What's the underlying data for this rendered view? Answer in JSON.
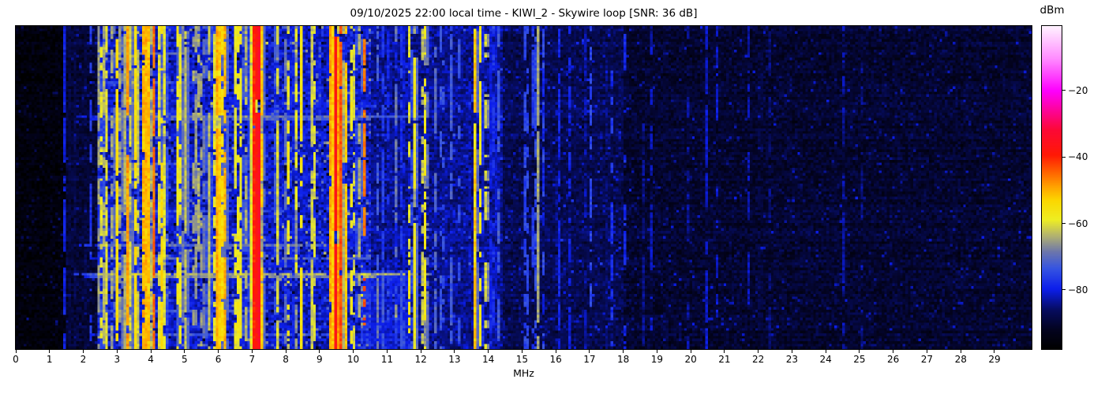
{
  "chart_data": {
    "type": "heatmap",
    "subtype": "radio-spectrum-waterfall",
    "title": "09/10/2025 22:00 local time - KIWI_2 - Skywire loop [SNR: 36 dB]",
    "xlabel": "MHz",
    "x_range_mhz": [
      0,
      30.1
    ],
    "x_ticks": [
      0,
      1,
      2,
      3,
      4,
      5,
      6,
      7,
      8,
      9,
      10,
      11,
      12,
      13,
      14,
      15,
      16,
      17,
      18,
      19,
      20,
      21,
      22,
      23,
      24,
      25,
      26,
      27,
      28,
      29
    ],
    "colorbar": {
      "label": "dBm",
      "range_dbm": [
        -97.8,
        -0.6
      ],
      "ticks": [
        {
          "value": -20,
          "label": "−20"
        },
        {
          "value": -40,
          "label": "−40"
        },
        {
          "value": -60,
          "label": "−60"
        },
        {
          "value": -80,
          "label": "−80"
        }
      ]
    },
    "colormap_stops": [
      [
        0.0,
        0,
        0,
        0
      ],
      [
        0.06,
        3,
        3,
        32
      ],
      [
        0.12,
        6,
        12,
        95
      ],
      [
        0.185,
        12,
        30,
        235
      ],
      [
        0.25,
        55,
        85,
        225
      ],
      [
        0.3,
        108,
        118,
        172
      ],
      [
        0.35,
        178,
        178,
        112
      ],
      [
        0.4,
        238,
        238,
        35
      ],
      [
        0.46,
        252,
        215,
        0
      ],
      [
        0.5,
        255,
        165,
        0
      ],
      [
        0.55,
        255,
        95,
        0
      ],
      [
        0.6,
        255,
        25,
        5
      ],
      [
        0.68,
        252,
        8,
        55
      ],
      [
        0.8,
        253,
        0,
        253
      ],
      [
        0.9,
        255,
        140,
        255
      ],
      [
        1.0,
        255,
        242,
        255
      ]
    ],
    "grid": {
      "cols": 386,
      "rows": 123
    },
    "seed": 7,
    "noise_floor_columns": [
      "f_start_mhz",
      "f_end_mhz",
      "floor_dbm"
    ],
    "noise_floor_dbm": [
      [
        0.0,
        1.5,
        -95.5
      ],
      [
        1.5,
        2.45,
        -90.0
      ],
      [
        2.45,
        10.5,
        -81.0
      ],
      [
        10.5,
        14.4,
        -84.0
      ],
      [
        14.4,
        18.0,
        -87.5
      ],
      [
        18.0,
        30.1,
        -90.5
      ]
    ],
    "signals_columns": [
      "freq_mhz",
      "peak_dbm",
      "width_mhz",
      "duty_cycle"
    ],
    "signals": [
      [
        1.43,
        -77,
        0.035,
        0.75
      ],
      [
        1.57,
        -75,
        0.035,
        0.8
      ],
      [
        1.63,
        -72,
        0.035,
        0.85
      ],
      [
        1.78,
        -76,
        0.035,
        0.7
      ],
      [
        1.94,
        -78,
        0.035,
        0.6
      ],
      [
        2.1,
        -74,
        0.04,
        0.65
      ],
      [
        2.22,
        -77,
        0.035,
        0.6
      ],
      [
        2.6,
        -62,
        0.04,
        0.8
      ],
      [
        3.2,
        -54,
        0.05,
        0.8
      ],
      [
        3.33,
        -47,
        0.06,
        0.85
      ],
      [
        3.52,
        -48,
        0.05,
        0.8
      ],
      [
        3.9,
        -25,
        0.035,
        0.9
      ],
      [
        4.1,
        -45,
        0.05,
        0.8
      ],
      [
        4.28,
        -52,
        0.05,
        0.75
      ],
      [
        6.0,
        -44,
        0.07,
        0.9
      ],
      [
        6.07,
        -53,
        0.05,
        0.75
      ],
      [
        6.18,
        -47,
        0.05,
        0.85
      ],
      [
        7.06,
        -40,
        0.08,
        0.93
      ],
      [
        7.18,
        -32,
        0.09,
        0.97
      ],
      [
        7.31,
        -50,
        0.06,
        0.8
      ],
      [
        8.46,
        -56,
        0.05,
        0.7
      ],
      [
        9.35,
        -45,
        0.07,
        0.9
      ],
      [
        9.48,
        -37,
        0.1,
        0.96
      ],
      [
        9.62,
        -43,
        0.07,
        0.9
      ],
      [
        9.76,
        -48,
        0.06,
        0.85
      ],
      [
        10.0,
        -58,
        0.05,
        0.6
      ],
      [
        10.32,
        -45,
        0.06,
        0.5
      ],
      [
        11.15,
        -61,
        0.035,
        0.85
      ],
      [
        11.65,
        -59,
        0.04,
        0.35
      ],
      [
        11.84,
        -54,
        0.06,
        0.75
      ],
      [
        12.07,
        -58,
        0.05,
        0.55
      ],
      [
        13.62,
        -51,
        0.07,
        0.85
      ],
      [
        13.78,
        -55,
        0.06,
        0.75
      ],
      [
        14.1,
        -72,
        0.04,
        0.65
      ],
      [
        15.08,
        -74,
        0.035,
        0.7
      ],
      [
        15.5,
        -57,
        0.035,
        0.9
      ],
      [
        16.12,
        -74,
        0.035,
        0.6
      ],
      [
        16.9,
        -78,
        0.035,
        0.55
      ],
      [
        17.65,
        -76,
        0.04,
        0.6
      ],
      [
        18.05,
        -79,
        0.035,
        0.55
      ],
      [
        20.48,
        -80,
        0.04,
        0.65
      ],
      [
        20.68,
        -82,
        0.035,
        0.55
      ],
      [
        21.05,
        -80,
        0.035,
        0.6
      ],
      [
        22.35,
        -84,
        0.035,
        0.5
      ],
      [
        24.0,
        -85,
        0.035,
        0.45
      ],
      [
        24.95,
        -83,
        0.035,
        0.5
      ],
      [
        26.5,
        -85,
        0.035,
        0.4
      ],
      [
        28.4,
        -86,
        0.035,
        0.4
      ]
    ],
    "activity_bands_columns": [
      "f_start_mhz",
      "f_end_mhz",
      "station_count",
      "dbm_min",
      "dbm_max",
      "duty_cycle"
    ],
    "activity_bands": [
      [
        2.45,
        3.25,
        9,
        -66,
        -54,
        0.55
      ],
      [
        3.25,
        4.2,
        15,
        -62,
        -48,
        0.65
      ],
      [
        4.2,
        5.2,
        11,
        -64,
        -53,
        0.6
      ],
      [
        5.25,
        5.7,
        5,
        -68,
        -58,
        0.5
      ],
      [
        5.7,
        6.4,
        8,
        -62,
        -52,
        0.65
      ],
      [
        6.45,
        7.0,
        7,
        -65,
        -55,
        0.6
      ],
      [
        7.35,
        8.15,
        7,
        -66,
        -56,
        0.55
      ],
      [
        8.2,
        8.9,
        6,
        -62,
        -54,
        0.6
      ],
      [
        9.9,
        10.18,
        3,
        -63,
        -56,
        0.55
      ],
      [
        10.55,
        11.55,
        8,
        -77,
        -68,
        0.5
      ],
      [
        11.6,
        12.25,
        4,
        -63,
        -56,
        0.55
      ],
      [
        12.3,
        13.45,
        8,
        -77,
        -66,
        0.45
      ],
      [
        13.5,
        13.95,
        3,
        -60,
        -54,
        0.65
      ],
      [
        14.0,
        14.4,
        4,
        -74,
        -66,
        0.55
      ],
      [
        14.45,
        16.0,
        7,
        -80,
        -72,
        0.5
      ],
      [
        16.05,
        18.0,
        7,
        -82,
        -75,
        0.45
      ],
      [
        18.1,
        30.0,
        13,
        -86,
        -80,
        0.45
      ]
    ],
    "time_streaks_columns": [
      "row",
      "f_start_mhz",
      "f_end_mhz",
      "boost_db"
    ],
    "time_streaks": [
      [
        10,
        2.4,
        4.8,
        9
      ],
      [
        21,
        2.2,
        5.4,
        7
      ],
      [
        34,
        1.8,
        12.2,
        11
      ],
      [
        35,
        2.3,
        10.6,
        8
      ],
      [
        52,
        2.4,
        6.2,
        6
      ],
      [
        70,
        3.0,
        8.0,
        6
      ],
      [
        83,
        1.9,
        9.2,
        10
      ],
      [
        88,
        2.2,
        10.5,
        10
      ],
      [
        94,
        1.7,
        12.3,
        16
      ],
      [
        95,
        2.0,
        10.7,
        13
      ],
      [
        108,
        2.5,
        7.5,
        7
      ],
      [
        117,
        2.2,
        9.5,
        8
      ]
    ],
    "patches_columns": [
      "f_start_mhz",
      "f_end_mhz",
      "row_start",
      "row_end",
      "boost_db"
    ],
    "patches": [
      [
        10.2,
        11.7,
        93,
        122,
        3.5
      ]
    ]
  }
}
